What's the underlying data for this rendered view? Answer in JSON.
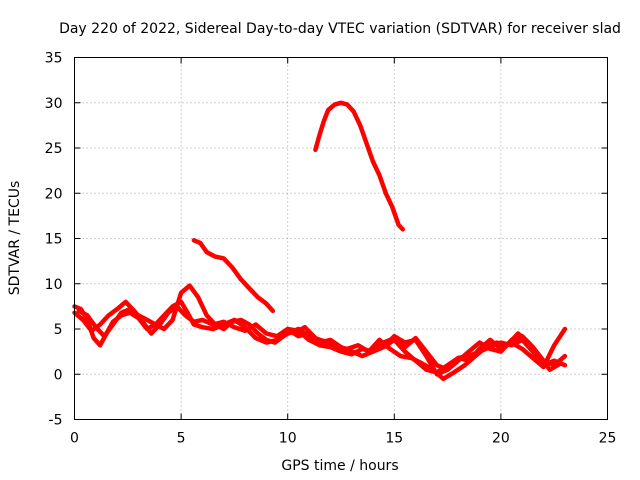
{
  "chart_data": {
    "type": "line",
    "title": "Day 220 of 2022, Sidereal Day-to-day VTEC variation (SDTVAR) for receiver slad",
    "xlabel": "GPS time / hours",
    "ylabel": "SDTVAR / TECUs",
    "xlim": [
      0,
      25
    ],
    "ylim": [
      -5,
      35
    ],
    "xticks": [
      0,
      5,
      10,
      15,
      20,
      25
    ],
    "yticks": [
      -5,
      0,
      5,
      10,
      15,
      20,
      25,
      30,
      35
    ],
    "xtick_labels": [
      "0",
      "5",
      "10",
      "15",
      "20",
      "25"
    ],
    "ytick_labels": [
      "-5",
      "0",
      "5",
      "10",
      "15",
      "20",
      "25",
      "30",
      "35"
    ],
    "grid": true,
    "legend": "none",
    "color": "#ff0000",
    "series": [
      {
        "name": "s1",
        "x": [
          0.0,
          0.3,
          0.6,
          0.9,
          1.2,
          1.5,
          1.8,
          2.2,
          2.6,
          3.0,
          3.4,
          3.8,
          4.2,
          4.6,
          5.0,
          5.3,
          5.6,
          6.0,
          6.5,
          7.0,
          7.5,
          8.0,
          8.5,
          9.0,
          9.5,
          10.0,
          10.5,
          11.0,
          11.5,
          12.0
        ],
        "y": [
          7.5,
          7.2,
          6.0,
          4.0,
          3.2,
          4.5,
          5.8,
          6.5,
          6.8,
          6.2,
          5.0,
          5.5,
          6.5,
          7.5,
          8.0,
          6.8,
          5.5,
          5.2,
          5.0,
          5.5,
          6.0,
          5.2,
          4.0,
          3.5,
          3.8,
          4.5,
          5.0,
          4.2,
          3.8,
          3.5
        ]
      },
      {
        "name": "s2",
        "x": [
          0.0,
          0.4,
          0.8,
          1.2,
          1.6,
          2.0,
          2.4,
          2.8,
          3.2,
          3.6,
          4.0,
          4.4,
          4.8,
          5.2,
          5.6,
          6.0,
          6.5,
          7.0,
          7.5,
          8.0,
          8.5,
          9.0,
          9.5,
          10.0,
          10.5,
          11.0
        ],
        "y": [
          6.8,
          6.0,
          4.8,
          5.5,
          6.5,
          7.2,
          8.0,
          7.0,
          5.8,
          4.5,
          5.5,
          6.8,
          7.5,
          6.5,
          5.8,
          6.0,
          5.5,
          5.8,
          5.2,
          4.8,
          5.5,
          4.5,
          4.2,
          5.0,
          4.8,
          4.0
        ]
      },
      {
        "name": "s3",
        "x": [
          0.2,
          0.6,
          1.0,
          1.4,
          1.8,
          2.2,
          2.6,
          3.0,
          3.4,
          3.8,
          4.2,
          4.6,
          5.0,
          5.4,
          5.8,
          6.2,
          6.6,
          7.0,
          7.4,
          7.8,
          8.2,
          8.6,
          9.0,
          9.4,
          9.8,
          10.2
        ],
        "y": [
          7.0,
          6.5,
          5.2,
          4.2,
          5.5,
          6.8,
          7.2,
          6.5,
          6.0,
          5.5,
          5.0,
          6.0,
          9.0,
          9.8,
          8.5,
          6.5,
          5.5,
          5.0,
          5.8,
          6.0,
          5.5,
          4.5,
          3.8,
          3.5,
          4.2,
          4.8
        ]
      },
      {
        "name": "s4",
        "x": [
          5.6,
          5.9,
          6.2,
          6.6,
          7.0,
          7.4,
          7.8,
          8.2,
          8.6,
          9.0,
          9.3
        ],
        "y": [
          14.8,
          14.5,
          13.5,
          13.0,
          12.8,
          11.8,
          10.5,
          9.5,
          8.5,
          7.8,
          7.0
        ]
      },
      {
        "name": "s5",
        "x": [
          11.3,
          11.5,
          11.7,
          11.9,
          12.2,
          12.5,
          12.8,
          13.1,
          13.4,
          13.7,
          14.0,
          14.3,
          14.6,
          14.9,
          15.2,
          15.4
        ],
        "y": [
          24.8,
          26.5,
          28.0,
          29.2,
          29.8,
          30.0,
          29.8,
          29.0,
          27.5,
          25.5,
          23.5,
          22.0,
          20.0,
          18.5,
          16.5,
          16.0
        ]
      },
      {
        "name": "s6",
        "x": [
          9.5,
          10.0,
          10.5,
          11.0,
          11.5,
          12.0,
          12.5,
          13.0,
          13.5,
          14.0,
          14.5,
          15.0,
          15.5,
          16.0,
          16.5,
          17.0,
          17.5,
          18.0,
          18.5,
          19.0,
          19.5,
          20.0,
          20.5,
          21.0,
          21.5,
          22.0,
          22.5,
          23.0
        ],
        "y": [
          4.0,
          4.5,
          4.8,
          3.8,
          3.2,
          3.0,
          2.5,
          2.2,
          2.8,
          2.5,
          3.0,
          3.8,
          2.5,
          1.5,
          0.5,
          0.2,
          1.0,
          1.8,
          2.0,
          2.5,
          3.0,
          3.5,
          3.2,
          3.8,
          2.5,
          1.0,
          1.5,
          1.0
        ]
      },
      {
        "name": "s7",
        "x": [
          10.0,
          10.5,
          11.0,
          11.5,
          12.0,
          12.5,
          13.0,
          13.5,
          14.0,
          14.5,
          15.0,
          15.5,
          16.0,
          16.5,
          17.0,
          17.5,
          18.0,
          18.5,
          19.0,
          19.5,
          20.0,
          20.5,
          21.0,
          21.5,
          22.0,
          22.5,
          23.0
        ],
        "y": [
          5.0,
          4.2,
          4.5,
          3.5,
          3.8,
          3.0,
          2.5,
          2.0,
          2.5,
          3.5,
          4.0,
          3.0,
          4.0,
          2.5,
          1.0,
          0.5,
          1.5,
          2.5,
          3.5,
          2.8,
          2.5,
          3.8,
          4.2,
          3.0,
          1.5,
          1.0,
          2.0
        ]
      },
      {
        "name": "s8",
        "x": [
          10.3,
          10.8,
          11.3,
          11.8,
          12.3,
          12.8,
          13.3,
          13.8,
          14.3,
          14.8,
          15.3,
          15.8,
          16.3,
          16.8,
          17.3,
          17.8,
          18.3,
          18.8,
          19.3,
          19.8,
          20.3,
          20.8,
          21.3,
          21.8,
          22.3,
          22.8
        ],
        "y": [
          4.5,
          5.2,
          4.0,
          3.5,
          3.0,
          2.8,
          3.2,
          2.5,
          3.8,
          2.8,
          2.0,
          1.8,
          1.2,
          0.5,
          -0.5,
          0.2,
          1.0,
          2.0,
          3.0,
          3.5,
          3.2,
          4.5,
          3.5,
          2.0,
          0.5,
          1.2
        ]
      },
      {
        "name": "s9",
        "x": [
          14.5,
          15.0,
          15.5,
          16.0,
          16.5,
          17.0,
          17.5,
          18.0,
          18.5,
          19.0,
          19.5,
          20.0,
          20.5,
          21.0,
          21.5,
          22.0,
          22.5,
          23.0
        ],
        "y": [
          3.0,
          4.2,
          3.5,
          3.8,
          2.0,
          0.0,
          0.5,
          1.8,
          1.5,
          2.8,
          3.8,
          2.8,
          3.5,
          2.8,
          1.8,
          0.8,
          3.2,
          5.0
        ]
      }
    ]
  }
}
